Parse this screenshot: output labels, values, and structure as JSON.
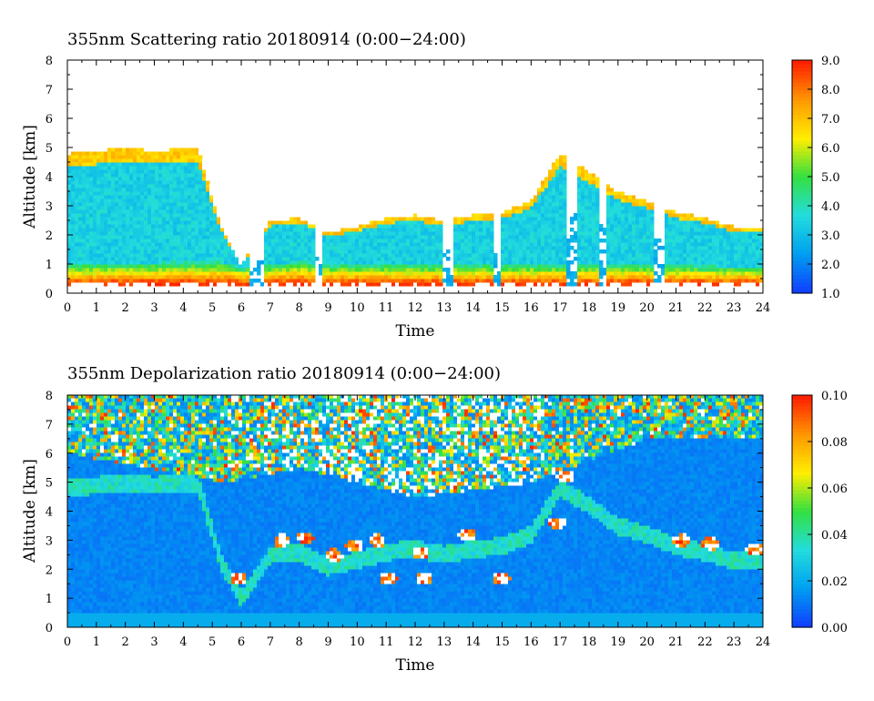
{
  "chart_data": [
    {
      "type": "heatmap",
      "title": "355nm  Scattering ratio   20180914  (0:00−24:00)",
      "xlabel": "Time",
      "ylabel": "Altitude [km]",
      "xlim": [
        0,
        24
      ],
      "ylim": [
        0,
        8
      ],
      "x_ticks": [
        "0",
        "1",
        "2",
        "3",
        "4",
        "5",
        "6",
        "7",
        "8",
        "9",
        "10",
        "11",
        "12",
        "13",
        "14",
        "15",
        "16",
        "17",
        "18",
        "19",
        "20",
        "21",
        "22",
        "23",
        "24"
      ],
      "y_ticks": [
        "0",
        "1",
        "2",
        "3",
        "4",
        "5",
        "6",
        "7",
        "8"
      ],
      "colorbar": {
        "range": [
          1.0,
          9.0
        ],
        "ticks": [
          "1.0",
          "2.0",
          "3.0",
          "4.0",
          "5.0",
          "6.0",
          "7.0",
          "8.0",
          "9.0"
        ],
        "colors": [
          "#1040ff",
          "#00a0f0",
          "#22dddd",
          "#33e040",
          "#ffee00",
          "#ff9900",
          "#ff2000"
        ]
      },
      "features": {
        "boundary_layer_top_km": [
          [
            0,
            1.0
          ],
          [
            5.3,
            1.1
          ],
          [
            6.0,
            0.9
          ],
          [
            7.0,
            1.0
          ],
          [
            8.0,
            1.1
          ],
          [
            9.0,
            1.0
          ],
          [
            12.0,
            1.0
          ],
          [
            15.0,
            1.0
          ],
          [
            17.0,
            1.0
          ],
          [
            20.0,
            1.0
          ],
          [
            24.0,
            0.9
          ]
        ],
        "aerosol_layer_top_km": [
          [
            0,
            4.8
          ],
          [
            1,
            4.9
          ],
          [
            2,
            5.0
          ],
          [
            3,
            4.9
          ],
          [
            4.5,
            5.0
          ],
          [
            5.3,
            2.3
          ],
          [
            6.0,
            1.0
          ],
          [
            7.0,
            2.5
          ],
          [
            8.0,
            2.6
          ],
          [
            9.0,
            2.1
          ],
          [
            10.0,
            2.3
          ],
          [
            11.0,
            2.6
          ],
          [
            12.0,
            2.7
          ],
          [
            13.0,
            2.5
          ],
          [
            14.0,
            2.7
          ],
          [
            15.0,
            2.8
          ],
          [
            16.0,
            3.2
          ],
          [
            17.0,
            4.8
          ],
          [
            18.0,
            4.2
          ],
          [
            19.0,
            3.5
          ],
          [
            20.0,
            3.2
          ],
          [
            21.0,
            2.8
          ],
          [
            22.0,
            2.6
          ],
          [
            23.0,
            2.3
          ],
          [
            24.0,
            2.3
          ]
        ],
        "clear_columns_h": [
          [
            6.3,
            6.8
          ],
          [
            8.5,
            8.8
          ],
          [
            13.0,
            13.3
          ],
          [
            14.7,
            15.0
          ],
          [
            17.2,
            17.6
          ],
          [
            18.3,
            18.6
          ],
          [
            20.2,
            20.6
          ]
        ]
      }
    },
    {
      "type": "heatmap",
      "title": "355nm  Depolarization ratio   20180914  (0:00−24:00)",
      "xlabel": "Time",
      "ylabel": "Altitude [km]",
      "xlim": [
        0,
        24
      ],
      "ylim": [
        0,
        8
      ],
      "x_ticks": [
        "0",
        "1",
        "2",
        "3",
        "4",
        "5",
        "6",
        "7",
        "8",
        "9",
        "10",
        "11",
        "12",
        "13",
        "14",
        "15",
        "16",
        "17",
        "18",
        "19",
        "20",
        "21",
        "22",
        "23",
        "24"
      ],
      "y_ticks": [
        "0",
        "1",
        "2",
        "3",
        "4",
        "5",
        "6",
        "7",
        "8"
      ],
      "colorbar": {
        "range": [
          0.0,
          0.1
        ],
        "ticks": [
          "0.00",
          "0.02",
          "0.04",
          "0.06",
          "0.08",
          "0.10"
        ],
        "colors": [
          "#1040ff",
          "#00a0f0",
          "#22dddd",
          "#33e040",
          "#ffee00",
          "#ff9900",
          "#ff2000"
        ]
      },
      "features": {
        "noisy_region_top_km": 8,
        "noisy_region_bottom_km": [
          [
            0,
            6.0
          ],
          [
            5.5,
            5.0
          ],
          [
            8.0,
            5.5
          ],
          [
            12.0,
            4.5
          ],
          [
            16.0,
            5.0
          ],
          [
            20.0,
            6.5
          ],
          [
            24.0,
            6.5
          ]
        ],
        "high_depol_patches": [
          [
            7.4,
            3.0
          ],
          [
            8.2,
            3.1
          ],
          [
            9.2,
            2.5
          ],
          [
            9.9,
            2.8
          ],
          [
            10.7,
            3.0
          ],
          [
            12.2,
            2.6
          ],
          [
            13.8,
            3.2
          ],
          [
            16.9,
            3.6
          ],
          [
            17.2,
            5.2
          ],
          [
            21.2,
            3.0
          ],
          [
            22.2,
            2.9
          ],
          [
            23.7,
            2.7
          ],
          [
            5.9,
            1.7
          ],
          [
            11.1,
            1.7
          ],
          [
            12.3,
            1.7
          ],
          [
            15.0,
            1.7
          ]
        ]
      }
    }
  ]
}
